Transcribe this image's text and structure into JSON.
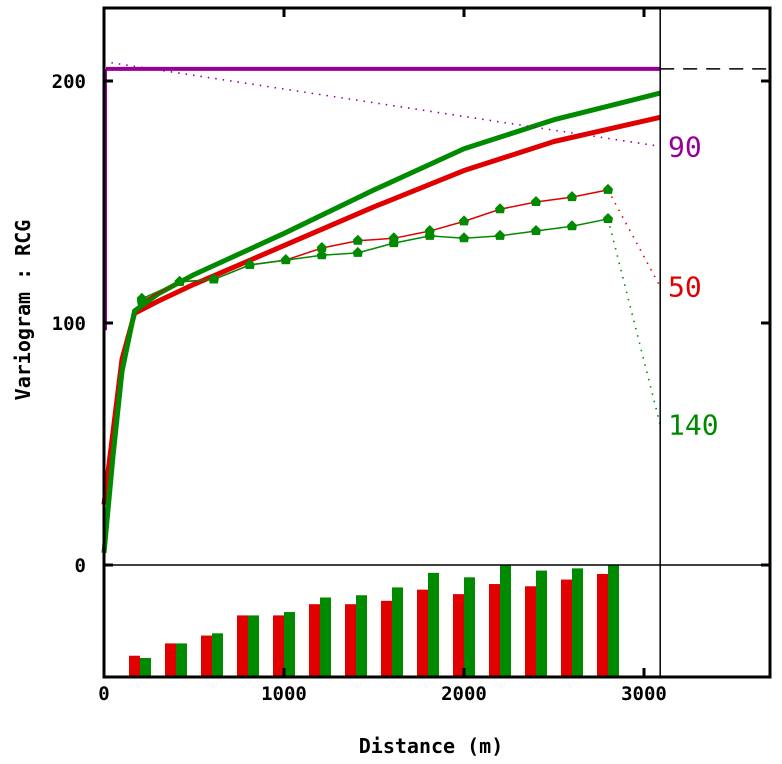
{
  "chart_data": {
    "type": "line",
    "title": "",
    "xlabel": "Distance (m)",
    "ylabel": "Variogram : RCG",
    "xlim": [
      0,
      3700
    ],
    "ylim": [
      -46,
      230
    ],
    "x_ticks": [
      {
        "value": 0,
        "label": "0"
      },
      {
        "value": 1000,
        "label": "1000"
      },
      {
        "value": 2000,
        "label": "2000"
      },
      {
        "value": 3000,
        "label": "3000"
      }
    ],
    "y_ticks": [
      {
        "value": 0,
        "label": "0"
      },
      {
        "value": 100,
        "label": "100"
      },
      {
        "value": 200,
        "label": "200"
      }
    ],
    "max_distance_marker": 3090,
    "sill": 205,
    "colors": {
      "dir50": "#e00000",
      "dir140": "#008a00",
      "dir90": "#960096",
      "marker": "#008a00"
    },
    "direction_labels": [
      {
        "label": "90",
        "value": 173,
        "color": "#960096"
      },
      {
        "label": "50",
        "value": 115,
        "color": "#e00000"
      },
      {
        "label": "140",
        "value": 58,
        "color": "#008a00"
      }
    ],
    "experimental": [
      {
        "name": "50",
        "color": "#e00000",
        "x": [
          210,
          420,
          610,
          810,
          1010,
          1210,
          1410,
          1610,
          1810,
          2000,
          2200,
          2400,
          2600,
          2800
        ],
        "y": [
          109,
          117,
          118,
          124,
          126,
          131,
          134,
          135,
          138,
          142,
          147,
          150,
          152,
          155
        ]
      },
      {
        "name": "140",
        "color": "#008a00",
        "x": [
          210,
          420,
          610,
          810,
          1010,
          1210,
          1410,
          1610,
          1810,
          2000,
          2200,
          2400,
          2600,
          2800
        ],
        "y": [
          110,
          117,
          118,
          124,
          126,
          128,
          129,
          133,
          136,
          135,
          136,
          138,
          140,
          143
        ]
      }
    ],
    "models": [
      {
        "name": "50",
        "color": "#e00000",
        "x": [
          0,
          50,
          100,
          170,
          300,
          500,
          1000,
          1500,
          2000,
          2500,
          3090
        ],
        "y": [
          25,
          55,
          85,
          104,
          109,
          116,
          132,
          148,
          163,
          175,
          185
        ]
      },
      {
        "name": "140",
        "color": "#008a00",
        "x": [
          0,
          50,
          100,
          170,
          300,
          500,
          1000,
          1500,
          2000,
          2500,
          3090
        ],
        "y": [
          5,
          45,
          80,
          105,
          112,
          120,
          137,
          155,
          172,
          184,
          195
        ]
      },
      {
        "name": "90",
        "color": "#960096",
        "x": [
          0,
          3090
        ],
        "y": [
          208,
          173
        ],
        "style": "dotted"
      }
    ],
    "pair_counts": {
      "note_units": "relative to max",
      "lags": [
        200,
        400,
        600,
        800,
        1000,
        1200,
        1400,
        1600,
        1800,
        2000,
        2200,
        2400,
        2600,
        2800
      ],
      "series": [
        {
          "name": "50",
          "color": "#e00000",
          "values": [
            0.19,
            0.3,
            0.37,
            0.55,
            0.55,
            0.65,
            0.65,
            0.68,
            0.78,
            0.74,
            0.83,
            0.81,
            0.87,
            0.92
          ]
        },
        {
          "name": "140",
          "color": "#008a00",
          "values": [
            0.17,
            0.3,
            0.39,
            0.55,
            0.58,
            0.71,
            0.73,
            0.8,
            0.93,
            0.89,
            1.0,
            0.95,
            0.97,
            1.0
          ]
        }
      ]
    }
  }
}
